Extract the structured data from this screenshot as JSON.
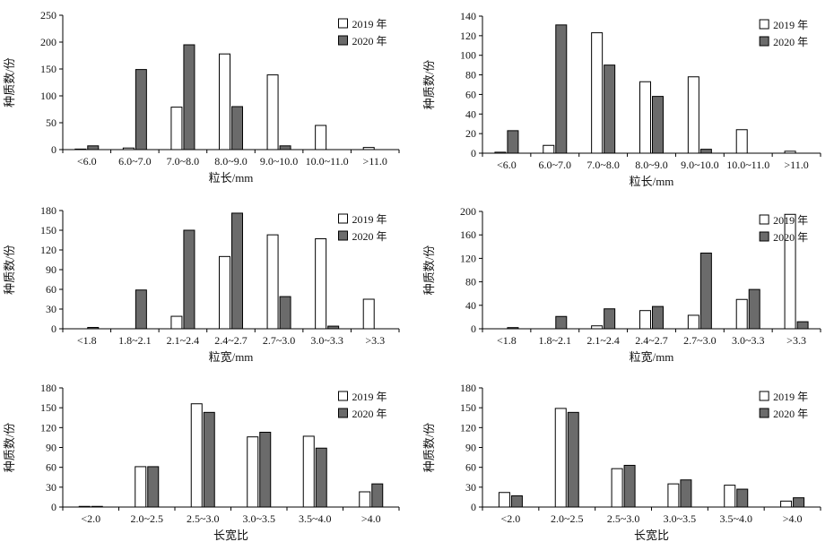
{
  "legend": {
    "series": [
      "2019 年",
      "2020 年"
    ]
  },
  "chart_data": [
    {
      "type": "bar",
      "xlabel": "粒长/mm",
      "ylabel": "种质数/份",
      "categories": [
        "<6.0",
        "6.0~7.0",
        "7.0~8.0",
        "8.0~9.0",
        "9.0~10.0",
        "10.0~11.0",
        ">11.0"
      ],
      "series": [
        {
          "name": "2019 年",
          "values": [
            1,
            3,
            79,
            178,
            139,
            45,
            4
          ]
        },
        {
          "name": "2020 年",
          "values": [
            7,
            149,
            195,
            80,
            7,
            0,
            0
          ]
        }
      ],
      "ylim": [
        0,
        250
      ],
      "yticks": [
        0,
        50,
        100,
        150,
        200,
        250
      ],
      "legend_position": "top-right"
    },
    {
      "type": "bar",
      "xlabel": "粒长/mm",
      "ylabel": "种质数/份",
      "categories": [
        "<6.0",
        "6.0~7.0",
        "7.0~8.0",
        "8.0~9.0",
        "9.0~10.0",
        "10.0~11.0",
        ">11.0"
      ],
      "series": [
        {
          "name": "2019 年",
          "values": [
            1,
            8,
            123,
            73,
            78,
            24,
            2
          ]
        },
        {
          "name": "2020 年",
          "values": [
            23,
            131,
            90,
            58,
            4,
            0,
            0
          ]
        }
      ],
      "ylim": [
        0,
        140
      ],
      "yticks": [
        0,
        20,
        40,
        60,
        80,
        100,
        120,
        140
      ],
      "legend_position": "top-right"
    },
    {
      "type": "bar",
      "xlabel": "粒宽/mm",
      "ylabel": "种质数/份",
      "categories": [
        "<1.8",
        "1.8~2.1",
        "2.1~2.4",
        "2.4~2.7",
        "2.7~3.0",
        "3.0~3.3",
        ">3.3"
      ],
      "series": [
        {
          "name": "2019 年",
          "values": [
            0,
            0,
            19,
            110,
            143,
            137,
            45
          ]
        },
        {
          "name": "2020 年",
          "values": [
            2,
            59,
            150,
            176,
            49,
            4,
            0
          ]
        }
      ],
      "ylim": [
        0,
        180
      ],
      "yticks": [
        0,
        30,
        60,
        90,
        120,
        150,
        180
      ],
      "legend_position": "top-right"
    },
    {
      "type": "bar",
      "xlabel": "粒宽/mm",
      "ylabel": "种质数/份",
      "categories": [
        "<1.8",
        "1.8~2.1",
        "2.1~2.4",
        "2.4~2.7",
        "2.7~3.0",
        "3.0~3.3",
        ">3.3"
      ],
      "series": [
        {
          "name": "2019 年",
          "values": [
            0,
            0,
            5,
            31,
            23,
            50,
            195
          ]
        },
        {
          "name": "2020 年",
          "values": [
            2,
            21,
            34,
            38,
            129,
            67,
            12
          ]
        }
      ],
      "ylim": [
        0,
        200
      ],
      "yticks": [
        0,
        40,
        80,
        120,
        160,
        200
      ],
      "legend_position": "top-right"
    },
    {
      "type": "bar",
      "xlabel": "长宽比",
      "ylabel": "种质数/份",
      "categories": [
        "<2.0",
        "2.0~2.5",
        "2.5~3.0",
        "3.0~3.5",
        "3.5~4.0",
        ">4.0"
      ],
      "series": [
        {
          "name": "2019 年",
          "values": [
            1,
            61,
            156,
            106,
            107,
            23
          ]
        },
        {
          "name": "2020 年",
          "values": [
            1,
            61,
            143,
            113,
            89,
            35
          ]
        }
      ],
      "ylim": [
        0,
        180
      ],
      "yticks": [
        0,
        30,
        60,
        90,
        120,
        150,
        180
      ],
      "legend_position": "top-right"
    },
    {
      "type": "bar",
      "xlabel": "长宽比",
      "ylabel": "种质数/份",
      "categories": [
        "<2.0",
        "2.0~2.5",
        "2.5~3.0",
        "3.0~3.5",
        "3.5~4.0",
        ">4.0"
      ],
      "series": [
        {
          "name": "2019 年",
          "values": [
            22,
            149,
            58,
            35,
            33,
            9
          ]
        },
        {
          "name": "2020 年",
          "values": [
            17,
            143,
            63,
            41,
            27,
            14
          ]
        }
      ],
      "ylim": [
        0,
        180
      ],
      "yticks": [
        0,
        30,
        60,
        90,
        120,
        150,
        180
      ],
      "legend_position": "top-right"
    }
  ]
}
